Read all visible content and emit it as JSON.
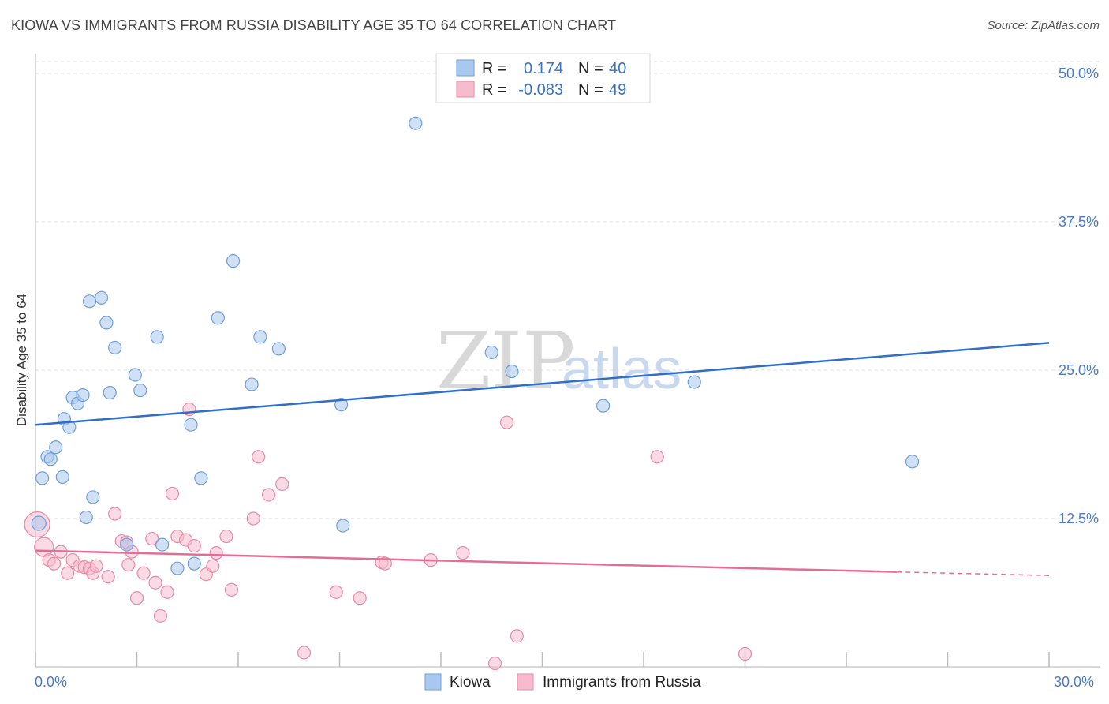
{
  "header": {
    "title": "KIOWA VS IMMIGRANTS FROM RUSSIA DISABILITY AGE 35 TO 64 CORRELATION CHART",
    "source": "Source: ZipAtlas.com"
  },
  "watermark": {
    "zip": "ZIP",
    "atlas": "atlas"
  },
  "legend_box": {
    "rows": [
      {
        "r_label": "R =",
        "r_value": "0.174",
        "n_label": "N =",
        "n_value": "40"
      },
      {
        "r_label": "R =",
        "r_value": "-0.083",
        "n_label": "N =",
        "n_value": "49"
      }
    ]
  },
  "colors": {
    "kiowa_fill": "#a9c8ef",
    "kiowa_stroke": "#6f9fd8",
    "kiowa_line": "#2f6fcc",
    "russia_fill": "#f6bccd",
    "russia_stroke": "#e98aa6",
    "russia_line": "#e46d95",
    "grid": "#dddddd",
    "axis_text": "#4a7cc9"
  },
  "chart_data": {
    "type": "scatter",
    "title": "KIOWA VS IMMIGRANTS FROM RUSSIA DISABILITY AGE 35 TO 64 CORRELATION CHART",
    "xlabel": "",
    "ylabel": "Disability Age 35 to 64",
    "xlim": [
      0,
      30
    ],
    "ylim": [
      0,
      51
    ],
    "x_tick_labels": [
      "0.0%",
      "30.0%"
    ],
    "y_ticks": [
      12.5,
      25.0,
      37.5,
      50.0
    ],
    "y_tick_labels": [
      "12.5%",
      "25.0%",
      "37.5%",
      "50.0%"
    ],
    "grid": true,
    "legend": "bottom-center",
    "series": [
      {
        "name": "Kiowa",
        "R": 0.174,
        "N": 40,
        "trend": {
          "x": [
            0,
            30
          ],
          "y": [
            20.4,
            27.3
          ]
        },
        "points": [
          {
            "x": 0.1,
            "y": 12.1,
            "r": 9
          },
          {
            "x": 0.2,
            "y": 15.9
          },
          {
            "x": 0.35,
            "y": 17.7
          },
          {
            "x": 0.45,
            "y": 17.5
          },
          {
            "x": 0.6,
            "y": 18.5
          },
          {
            "x": 0.8,
            "y": 16.0
          },
          {
            "x": 0.85,
            "y": 20.9
          },
          {
            "x": 1.0,
            "y": 20.2
          },
          {
            "x": 1.1,
            "y": 22.7
          },
          {
            "x": 1.25,
            "y": 22.2
          },
          {
            "x": 1.4,
            "y": 22.9
          },
          {
            "x": 1.5,
            "y": 12.6
          },
          {
            "x": 1.6,
            "y": 30.8
          },
          {
            "x": 1.7,
            "y": 14.3
          },
          {
            "x": 1.95,
            "y": 31.1
          },
          {
            "x": 2.1,
            "y": 29.0
          },
          {
            "x": 2.2,
            "y": 23.1
          },
          {
            "x": 2.35,
            "y": 26.9
          },
          {
            "x": 2.7,
            "y": 10.3
          },
          {
            "x": 2.95,
            "y": 24.6
          },
          {
            "x": 3.1,
            "y": 23.3
          },
          {
            "x": 3.6,
            "y": 27.8
          },
          {
            "x": 3.75,
            "y": 10.3
          },
          {
            "x": 4.2,
            "y": 8.3
          },
          {
            "x": 4.6,
            "y": 20.4
          },
          {
            "x": 4.7,
            "y": 8.7
          },
          {
            "x": 4.9,
            "y": 15.9
          },
          {
            "x": 5.4,
            "y": 29.4
          },
          {
            "x": 5.85,
            "y": 34.2
          },
          {
            "x": 6.4,
            "y": 23.8
          },
          {
            "x": 6.65,
            "y": 27.8
          },
          {
            "x": 7.2,
            "y": 26.8
          },
          {
            "x": 9.05,
            "y": 22.1
          },
          {
            "x": 9.1,
            "y": 11.9
          },
          {
            "x": 11.25,
            "y": 45.8
          },
          {
            "x": 13.5,
            "y": 26.5
          },
          {
            "x": 14.1,
            "y": 24.9
          },
          {
            "x": 16.8,
            "y": 22.0
          },
          {
            "x": 19.5,
            "y": 24.0
          },
          {
            "x": 25.95,
            "y": 17.3
          }
        ]
      },
      {
        "name": "Immigrants from Russia",
        "R": -0.083,
        "N": 49,
        "trend": {
          "x": [
            0,
            25.5
          ],
          "y": [
            9.8,
            8.0
          ],
          "dashed_to": {
            "x": 30,
            "y": 7.7
          }
        },
        "points": [
          {
            "x": 0.05,
            "y": 12.0,
            "r": 16
          },
          {
            "x": 0.25,
            "y": 10.1,
            "r": 12
          },
          {
            "x": 0.4,
            "y": 9.0
          },
          {
            "x": 0.55,
            "y": 8.7
          },
          {
            "x": 0.75,
            "y": 9.7
          },
          {
            "x": 0.95,
            "y": 7.9
          },
          {
            "x": 1.1,
            "y": 9.0
          },
          {
            "x": 1.3,
            "y": 8.5
          },
          {
            "x": 1.45,
            "y": 8.4
          },
          {
            "x": 1.6,
            "y": 8.3
          },
          {
            "x": 1.7,
            "y": 7.9
          },
          {
            "x": 1.8,
            "y": 8.5
          },
          {
            "x": 2.15,
            "y": 7.6
          },
          {
            "x": 2.35,
            "y": 12.9
          },
          {
            "x": 2.55,
            "y": 10.6
          },
          {
            "x": 2.7,
            "y": 10.5
          },
          {
            "x": 2.75,
            "y": 8.6
          },
          {
            "x": 2.85,
            "y": 9.7
          },
          {
            "x": 3.0,
            "y": 5.8
          },
          {
            "x": 3.2,
            "y": 7.9
          },
          {
            "x": 3.45,
            "y": 10.8
          },
          {
            "x": 3.55,
            "y": 7.1
          },
          {
            "x": 3.7,
            "y": 4.3
          },
          {
            "x": 3.9,
            "y": 6.3
          },
          {
            "x": 4.05,
            "y": 14.6
          },
          {
            "x": 4.2,
            "y": 11.0
          },
          {
            "x": 4.45,
            "y": 10.7
          },
          {
            "x": 4.55,
            "y": 21.7
          },
          {
            "x": 4.7,
            "y": 10.2
          },
          {
            "x": 5.05,
            "y": 7.8
          },
          {
            "x": 5.25,
            "y": 8.5
          },
          {
            "x": 5.35,
            "y": 9.6
          },
          {
            "x": 5.65,
            "y": 11.0
          },
          {
            "x": 5.8,
            "y": 6.5
          },
          {
            "x": 6.45,
            "y": 12.5
          },
          {
            "x": 6.6,
            "y": 17.7
          },
          {
            "x": 6.9,
            "y": 14.5
          },
          {
            "x": 7.3,
            "y": 15.4
          },
          {
            "x": 7.95,
            "y": 1.2
          },
          {
            "x": 8.9,
            "y": 6.3
          },
          {
            "x": 9.6,
            "y": 5.8
          },
          {
            "x": 10.25,
            "y": 8.8
          },
          {
            "x": 10.35,
            "y": 8.7
          },
          {
            "x": 11.7,
            "y": 9.0
          },
          {
            "x": 12.65,
            "y": 9.6
          },
          {
            "x": 13.6,
            "y": 0.3
          },
          {
            "x": 13.95,
            "y": 20.6
          },
          {
            "x": 14.25,
            "y": 2.6
          },
          {
            "x": 18.4,
            "y": 17.7
          },
          {
            "x": 21.0,
            "y": 1.1
          }
        ]
      }
    ]
  },
  "bottom_legend": [
    {
      "label": "Kiowa"
    },
    {
      "label": "Immigrants from Russia"
    }
  ]
}
